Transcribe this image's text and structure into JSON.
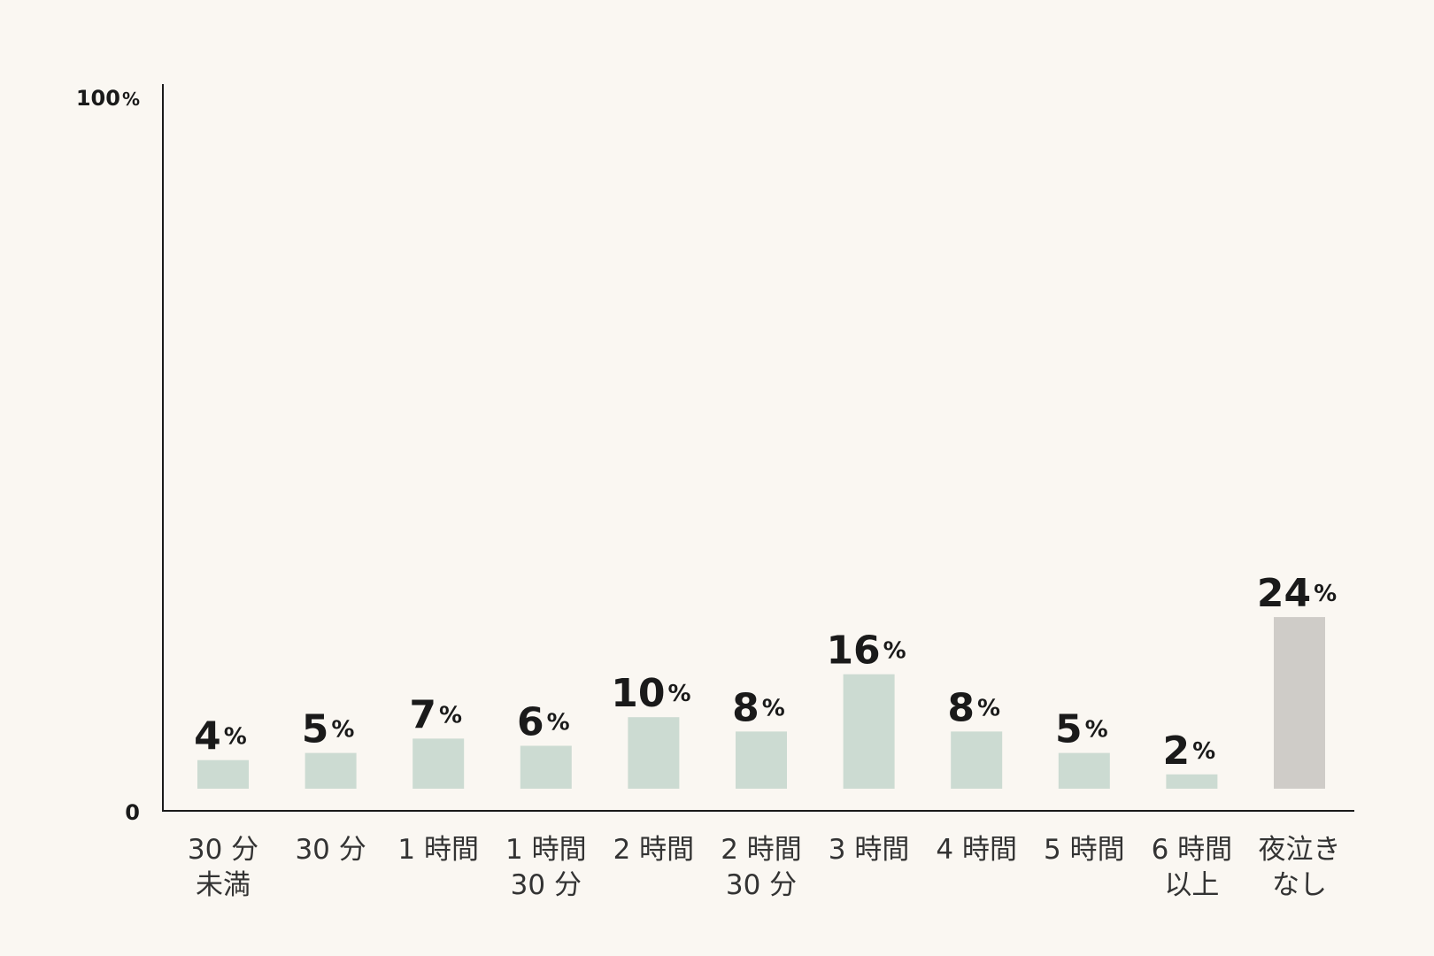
{
  "chart_data": {
    "type": "bar",
    "title": "",
    "xlabel": "",
    "ylabel": "",
    "ylim": [
      0,
      100
    ],
    "y_tick_labels": [
      {
        "value": 0,
        "label": "0"
      },
      {
        "value": 100,
        "label": "100",
        "unit": "%"
      }
    ],
    "value_unit": "%",
    "categories": [
      [
        "30 分",
        "未満"
      ],
      [
        "30 分"
      ],
      [
        "1 時間"
      ],
      [
        "1 時間",
        "30 分"
      ],
      [
        "2 時間"
      ],
      [
        "2 時間",
        "30 分"
      ],
      [
        "3 時間"
      ],
      [
        "4 時間"
      ],
      [
        "5 時間"
      ],
      [
        "6 時間",
        "以上"
      ],
      [
        "夜泣き",
        "なし"
      ]
    ],
    "values": [
      4,
      5,
      7,
      6,
      10,
      8,
      16,
      8,
      5,
      2,
      24
    ],
    "bar_colors": [
      "#ccdbd2",
      "#ccdbd2",
      "#ccdbd2",
      "#ccdbd2",
      "#ccdbd2",
      "#ccdbd2",
      "#ccdbd2",
      "#ccdbd2",
      "#ccdbd2",
      "#ccdbd2",
      "#cfccc8"
    ],
    "grid": false,
    "legend": "none"
  },
  "colors": {
    "background": "#faf7f2",
    "axis": "#1a1a1a",
    "bar": "#ccdbd2",
    "bar_highlight": "#cfccc8",
    "text": "#1a1a1a",
    "category_text": "#333333"
  }
}
